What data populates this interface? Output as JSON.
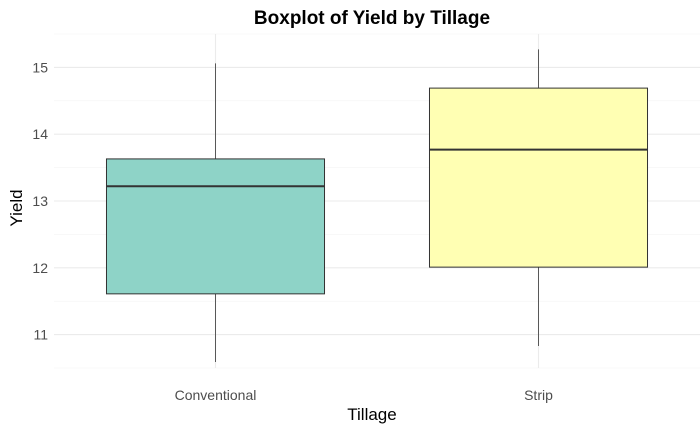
{
  "chart_data": {
    "type": "boxplot",
    "title": "Boxplot of Yield by Tillage",
    "xlabel": "Tillage",
    "ylabel": "Yield",
    "ylim": [
      10.5,
      15.5
    ],
    "y_ticks": [
      11,
      12,
      13,
      14,
      15
    ],
    "grid": true,
    "legend": "none",
    "categories": [
      "Conventional",
      "Strip"
    ],
    "boxes": [
      {
        "category": "Conventional",
        "whisker_low": 10.59,
        "q1": 11.61,
        "median": 13.22,
        "q3": 13.63,
        "whisker_high": 15.06,
        "fill": "#8ED3C7"
      },
      {
        "category": "Strip",
        "whisker_low": 10.83,
        "q1": 12.01,
        "median": 13.77,
        "q3": 14.69,
        "whisker_high": 15.27,
        "fill": "#FFFFB3"
      }
    ]
  }
}
